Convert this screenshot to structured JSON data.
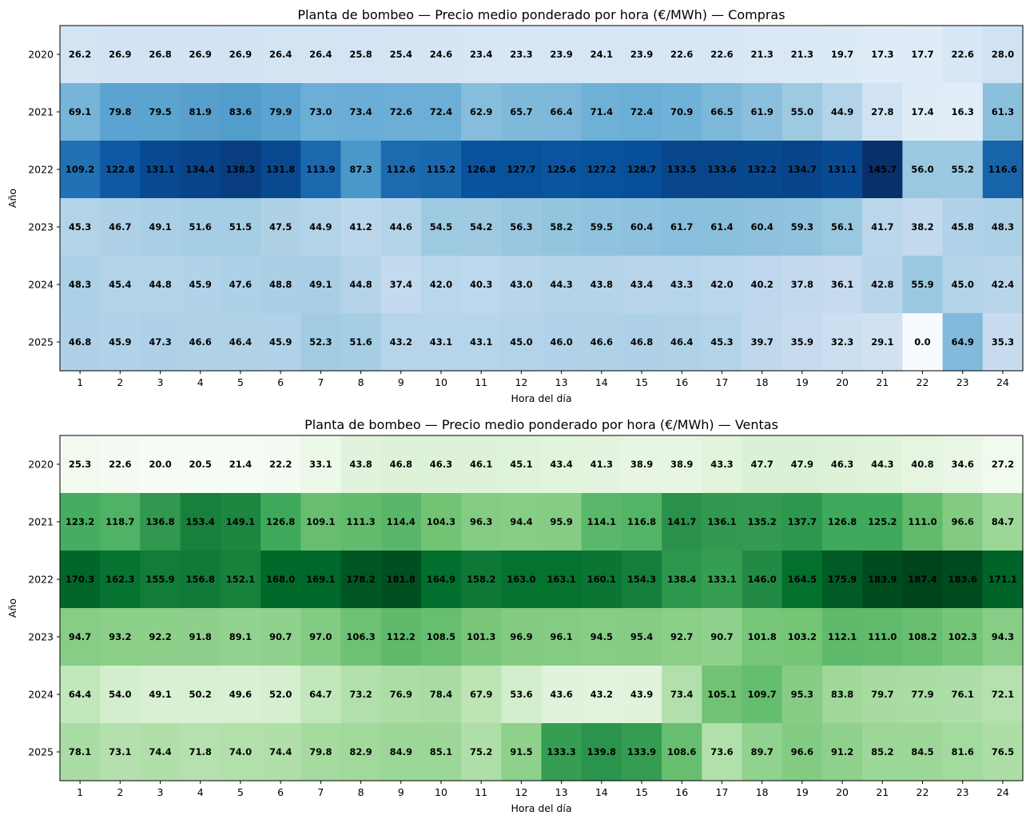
{
  "chart_data": [
    {
      "type": "heatmap",
      "title": "Planta de bombeo — Precio medio ponderado por hora (€/MWh) — Compras",
      "xlabel": "Hora del día",
      "ylabel": "Año",
      "colormap": "Blues",
      "x": [
        "1",
        "2",
        "3",
        "4",
        "5",
        "6",
        "7",
        "8",
        "9",
        "10",
        "11",
        "12",
        "13",
        "14",
        "15",
        "16",
        "17",
        "18",
        "19",
        "20",
        "21",
        "22",
        "23",
        "24"
      ],
      "y": [
        "2020",
        "2021",
        "2022",
        "2023",
        "2024",
        "2025"
      ],
      "values": [
        [
          26.2,
          26.9,
          26.8,
          26.9,
          26.9,
          26.4,
          26.4,
          25.8,
          25.4,
          24.6,
          23.4,
          23.3,
          23.9,
          24.1,
          23.9,
          22.6,
          22.6,
          21.3,
          21.3,
          19.7,
          17.3,
          17.7,
          22.6,
          28.0
        ],
        [
          69.1,
          79.8,
          79.5,
          81.9,
          83.6,
          79.9,
          73.0,
          73.4,
          72.6,
          72.4,
          62.9,
          65.7,
          66.4,
          71.4,
          72.4,
          70.9,
          66.5,
          61.9,
          55.0,
          44.9,
          27.8,
          17.4,
          16.3,
          61.3
        ],
        [
          109.2,
          122.8,
          131.1,
          134.4,
          138.3,
          131.8,
          113.9,
          87.3,
          112.6,
          115.2,
          126.8,
          127.7,
          125.6,
          127.2,
          128.7,
          133.5,
          133.6,
          132.2,
          134.7,
          131.1,
          145.7,
          56.0,
          55.2,
          116.6
        ],
        [
          45.3,
          46.7,
          49.1,
          51.6,
          51.5,
          47.5,
          44.9,
          41.2,
          44.6,
          54.5,
          54.2,
          56.3,
          58.2,
          59.5,
          60.4,
          61.7,
          61.4,
          60.4,
          59.3,
          56.1,
          41.7,
          38.2,
          45.8,
          48.3
        ],
        [
          48.3,
          45.4,
          44.8,
          45.9,
          47.6,
          48.8,
          49.1,
          44.8,
          37.4,
          42.0,
          40.3,
          43.0,
          44.3,
          43.8,
          43.4,
          43.3,
          42.0,
          40.2,
          37.8,
          36.1,
          42.8,
          55.9,
          45.0,
          42.4
        ],
        [
          46.8,
          45.9,
          47.3,
          46.6,
          46.4,
          45.9,
          52.3,
          51.6,
          43.2,
          43.1,
          43.1,
          45.0,
          46.0,
          46.6,
          46.8,
          46.4,
          45.3,
          39.7,
          35.9,
          32.3,
          29.1,
          0.0,
          64.9,
          35.3
        ]
      ]
    },
    {
      "type": "heatmap",
      "title": "Planta de bombeo — Precio medio ponderado por hora (€/MWh) — Ventas",
      "xlabel": "Hora del día",
      "ylabel": "Año",
      "colormap": "Greens",
      "x": [
        "1",
        "2",
        "3",
        "4",
        "5",
        "6",
        "7",
        "8",
        "9",
        "10",
        "11",
        "12",
        "13",
        "14",
        "15",
        "16",
        "17",
        "18",
        "19",
        "20",
        "21",
        "22",
        "23",
        "24"
      ],
      "y": [
        "2020",
        "2021",
        "2022",
        "2023",
        "2024",
        "2025"
      ],
      "values": [
        [
          25.3,
          22.6,
          20.0,
          20.5,
          21.4,
          22.2,
          33.1,
          43.8,
          46.8,
          46.3,
          46.1,
          45.1,
          43.4,
          41.3,
          38.9,
          38.9,
          43.3,
          47.7,
          47.9,
          46.3,
          44.3,
          40.8,
          34.6,
          27.2
        ],
        [
          123.2,
          118.7,
          136.8,
          153.4,
          149.1,
          126.8,
          109.1,
          111.3,
          114.4,
          104.3,
          96.3,
          94.4,
          95.9,
          114.1,
          116.8,
          141.7,
          136.1,
          135.2,
          137.7,
          126.8,
          125.2,
          111.0,
          96.6,
          84.7
        ],
        [
          170.3,
          162.3,
          155.9,
          156.8,
          152.1,
          168.0,
          169.1,
          178.2,
          181.8,
          164.9,
          158.2,
          163.0,
          163.1,
          160.1,
          154.3,
          138.4,
          133.1,
          146.0,
          164.5,
          175.9,
          183.9,
          187.4,
          183.6,
          171.1
        ],
        [
          94.7,
          93.2,
          92.2,
          91.8,
          89.1,
          90.7,
          97.0,
          106.3,
          112.2,
          108.5,
          101.3,
          96.9,
          96.1,
          94.5,
          95.4,
          92.7,
          90.7,
          101.8,
          103.2,
          112.1,
          111.0,
          108.2,
          102.3,
          94.3
        ],
        [
          64.4,
          54.0,
          49.1,
          50.2,
          49.6,
          52.0,
          64.7,
          73.2,
          76.9,
          78.4,
          67.9,
          53.6,
          43.6,
          43.2,
          43.9,
          73.4,
          105.1,
          109.7,
          95.3,
          83.8,
          79.7,
          77.9,
          76.1,
          72.1
        ],
        [
          78.1,
          73.1,
          74.4,
          71.8,
          74.0,
          74.4,
          79.8,
          82.9,
          84.9,
          85.1,
          75.2,
          91.5,
          133.3,
          139.8,
          133.9,
          108.6,
          73.6,
          89.7,
          96.6,
          91.2,
          85.2,
          84.5,
          81.6,
          76.5
        ]
      ]
    }
  ]
}
